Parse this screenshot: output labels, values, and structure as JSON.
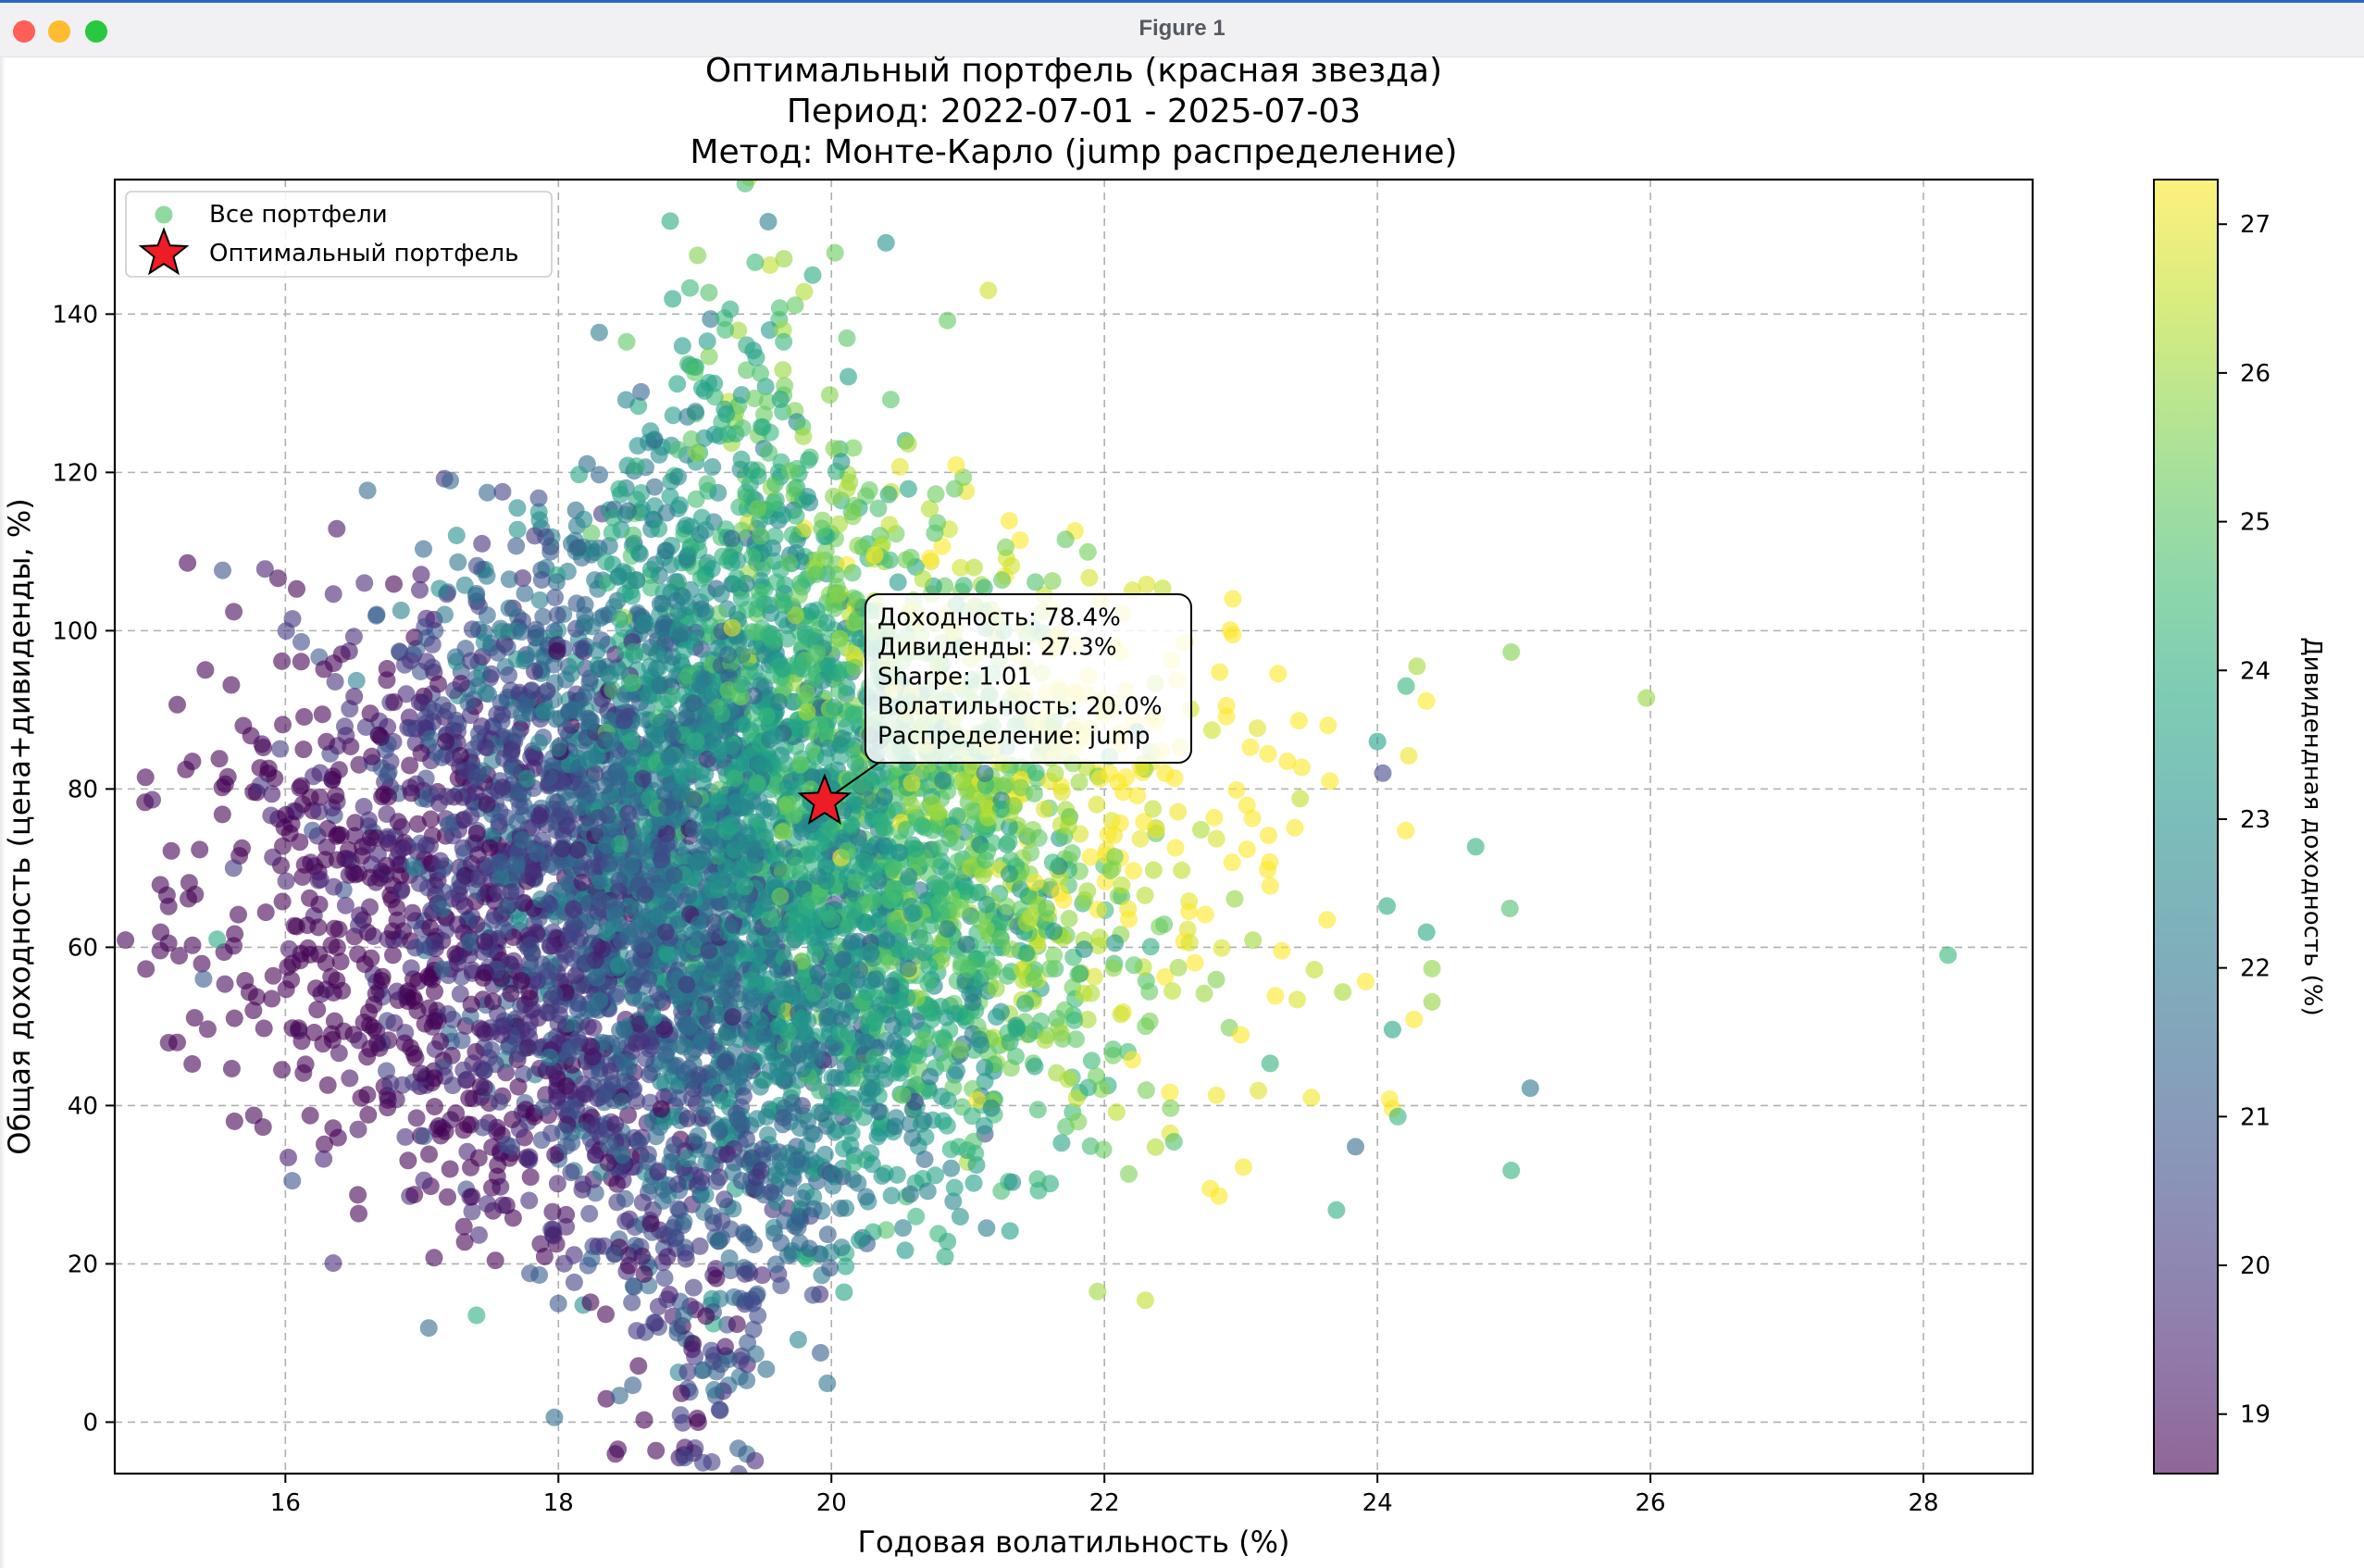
{
  "window": {
    "title": "Figure 1"
  },
  "chart_data": {
    "type": "scatter",
    "title_lines": [
      "Оптимальный портфель (красная звезда)",
      "Период: 2022-07-01 - 2025-07-03",
      "Метод: Монте-Карло (jump распределение)"
    ],
    "xlabel": "Годовая волатильность (%)",
    "ylabel": "Общая доходность (цена+дивиденды, %)",
    "colorbar_label": "Дивидендная доходность (%)",
    "xlim": [
      14.75,
      28.8
    ],
    "ylim": [
      -6.5,
      157
    ],
    "xticks": [
      16,
      18,
      20,
      22,
      24,
      26,
      28
    ],
    "yticks": [
      0,
      20,
      40,
      60,
      80,
      100,
      120,
      140
    ],
    "colorbar_range": [
      18.6,
      27.3
    ],
    "colorbar_ticks": [
      19,
      20,
      21,
      22,
      23,
      24,
      25,
      26,
      27
    ],
    "colormap": "viridis",
    "point_alpha": 0.6,
    "grid": true,
    "legend_position": "upper-left",
    "legend": [
      {
        "label": "Все портфели",
        "marker": "circle",
        "color": "#74cf8a"
      },
      {
        "label": "Оптимальный портфель",
        "marker": "star",
        "color": "#ee1c25"
      }
    ],
    "cloud": {
      "description_values": "dense Monte-Carlo cloud of portfolios",
      "center_volatility": 19.2,
      "center_return": 70,
      "volatility_spread": 1.55,
      "return_spread": 25,
      "n_points": 6000
    },
    "series": [
      {
        "name": "Все портфели",
        "sample_points": [
          {
            "x": 28.18,
            "y": 59,
            "c": 24.4
          },
          {
            "x": 25.97,
            "y": 91.5,
            "c": 25.9
          },
          {
            "x": 24.98,
            "y": 97.3,
            "c": 25.6
          },
          {
            "x": 25.12,
            "y": 42.2,
            "c": 22.0
          },
          {
            "x": 24.98,
            "y": 31.8,
            "c": 24.2
          },
          {
            "x": 24.97,
            "y": 64.9,
            "c": 24.8
          },
          {
            "x": 24.72,
            "y": 72.7,
            "c": 24.1
          },
          {
            "x": 24.4,
            "y": 57.3,
            "c": 25.8
          },
          {
            "x": 24.36,
            "y": 61.9,
            "c": 23.8
          },
          {
            "x": 24.29,
            "y": 95.5,
            "c": 26.1
          },
          {
            "x": 24.21,
            "y": 93.0,
            "c": 24.3
          },
          {
            "x": 24.23,
            "y": 84.2,
            "c": 27.1
          },
          {
            "x": 24.11,
            "y": 49.6,
            "c": 23.7
          },
          {
            "x": 24.15,
            "y": 38.6,
            "c": 24.3
          },
          {
            "x": 24.04,
            "y": 82.0,
            "c": 20.4
          },
          {
            "x": 24.0,
            "y": 86.0,
            "c": 23.5
          },
          {
            "x": 24.07,
            "y": 65.2,
            "c": 23.9
          },
          {
            "x": 24.4,
            "y": 53.1,
            "c": 25.9
          },
          {
            "x": 23.84,
            "y": 34.8,
            "c": 21.6
          },
          {
            "x": 23.7,
            "y": 26.8,
            "c": 24.0
          },
          {
            "x": 22.3,
            "y": 15.4,
            "c": 26.5
          },
          {
            "x": 21.95,
            "y": 16.5,
            "c": 26.0
          },
          {
            "x": 19.97,
            "y": 4.9,
            "c": 21.9
          },
          {
            "x": 17.97,
            "y": 0.6,
            "c": 21.7
          },
          {
            "x": 15.4,
            "y": 56.0,
            "c": 21.0
          },
          {
            "x": 15.5,
            "y": 61.0,
            "c": 23.8
          },
          {
            "x": 15.62,
            "y": 70.0,
            "c": 20.1
          },
          {
            "x": 20.4,
            "y": 149.0,
            "c": 23.0
          },
          {
            "x": 21.15,
            "y": 143.0,
            "c": 26.7
          },
          {
            "x": 20.85,
            "y": 139.2,
            "c": 25.2
          },
          {
            "x": 19.65,
            "y": 136.5,
            "c": 24.4
          },
          {
            "x": 18.5,
            "y": 136.5,
            "c": 25.1
          },
          {
            "x": 17.05,
            "y": 11.9,
            "c": 21.6
          },
          {
            "x": 17.4,
            "y": 13.5,
            "c": 24.0
          },
          {
            "x": 16.35,
            "y": 20.1,
            "c": 19.6
          },
          {
            "x": 16.05,
            "y": 30.5,
            "c": 20.8
          }
        ]
      },
      {
        "name": "Оптимальный портфель",
        "points": [
          {
            "x": 19.95,
            "y": 78.4,
            "c": 27.3
          }
        ]
      }
    ],
    "annotation": {
      "lines": [
        "Доходность: 78.4%",
        "Дивиденды: 27.3%",
        "Sharpe: 1.01",
        "Волатильность: 20.0%",
        "Распределение: jump"
      ]
    }
  }
}
